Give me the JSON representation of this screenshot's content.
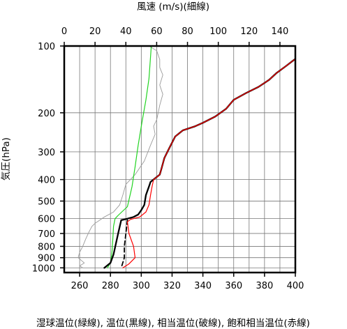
{
  "chart_data": {
    "type": "line",
    "top_axis_label": "風速 (m/s)(細線)",
    "left_axis_label": "気圧(hPa)",
    "bottom_axis_label": "湿球温位(緑線), 温位(黒線), 相当温位(破線), 飽和相当温位(赤線)",
    "x_range_temperature_K": [
      250,
      400
    ],
    "x_range_wind_ms": [
      0,
      150
    ],
    "y_range_hPa": [
      100,
      1050
    ],
    "y_scale": "log",
    "y_inverted": true,
    "grid": true,
    "x_ticks_temperature": [
      "260",
      "280",
      "300",
      "320",
      "340",
      "360",
      "380",
      "400"
    ],
    "x_ticks_wind": [
      "0",
      "20",
      "40",
      "60",
      "80",
      "100",
      "120",
      "140"
    ],
    "y_ticks": [
      "100",
      "200",
      "300",
      "400",
      "500",
      "600",
      "700",
      "800",
      "900",
      "1000"
    ],
    "series": [
      {
        "key": "wind",
        "axis": "wind",
        "color": "#9a9a9a",
        "style": "thin",
        "points": [
          [
            55,
            100
          ],
          [
            60,
            105
          ],
          [
            62,
            115
          ],
          [
            62,
            125
          ],
          [
            64,
            135
          ],
          [
            62,
            150
          ],
          [
            64,
            165
          ],
          [
            62,
            185
          ],
          [
            61,
            200
          ],
          [
            60,
            215
          ],
          [
            58,
            230
          ],
          [
            59,
            250
          ],
          [
            56,
            280
          ],
          [
            52,
            330
          ],
          [
            46,
            380
          ],
          [
            40,
            420
          ],
          [
            38,
            470
          ],
          [
            36,
            520
          ],
          [
            32,
            560
          ],
          [
            26,
            590
          ],
          [
            23,
            610
          ],
          [
            20,
            630
          ],
          [
            18,
            650
          ],
          [
            16,
            690
          ],
          [
            14,
            740
          ],
          [
            12,
            800
          ],
          [
            10,
            850
          ],
          [
            9,
            900
          ],
          [
            13,
            950
          ],
          [
            10,
            980
          ],
          [
            12,
            1000
          ]
        ]
      },
      {
        "key": "wet_bulb_potential_temperature",
        "axis": "temperature",
        "color": "#21d421",
        "style": "solid",
        "points": [
          [
            306.5,
            100
          ],
          [
            305,
            140
          ],
          [
            303,
            175
          ],
          [
            300.5,
            220
          ],
          [
            298,
            280
          ],
          [
            296,
            350
          ],
          [
            294,
            430
          ],
          [
            291,
            530
          ],
          [
            285,
            580
          ],
          [
            283,
            600
          ],
          [
            282,
            650
          ],
          [
            281.5,
            750
          ],
          [
            281,
            850
          ],
          [
            280,
            950
          ],
          [
            278,
            1000
          ]
        ]
      },
      {
        "key": "potential_temperature",
        "axis": "temperature",
        "color": "#000000",
        "style": "bold",
        "points": [
          [
            399.5,
            115
          ],
          [
            394,
            123
          ],
          [
            388,
            132
          ],
          [
            383,
            142
          ],
          [
            376,
            153
          ],
          [
            368,
            163
          ],
          [
            360,
            175
          ],
          [
            355,
            192
          ],
          [
            348,
            208
          ],
          [
            340,
            222
          ],
          [
            335,
            230
          ],
          [
            327,
            240
          ],
          [
            322,
            256
          ],
          [
            318,
            290
          ],
          [
            315,
            320
          ],
          [
            313,
            360
          ],
          [
            312,
            380
          ],
          [
            306,
            410
          ],
          [
            305.5,
            420
          ],
          [
            303,
            470
          ],
          [
            302,
            520
          ],
          [
            300,
            550
          ],
          [
            298,
            575
          ],
          [
            295,
            590
          ],
          [
            291,
            600
          ],
          [
            287,
            610
          ],
          [
            285,
            700
          ],
          [
            282,
            870
          ],
          [
            280,
            950
          ],
          [
            276,
            1000
          ]
        ]
      },
      {
        "key": "equivalent_potential_temperature",
        "axis": "temperature",
        "color": "#000000",
        "style": "dashed",
        "points": [
          [
            291,
            610
          ],
          [
            290,
            700
          ],
          [
            289,
            800
          ],
          [
            289,
            900
          ],
          [
            287,
            1000
          ]
        ]
      },
      {
        "key": "saturated_equivalent_potential_temperature",
        "axis": "temperature",
        "color": "#ff0000",
        "style": "solid",
        "points": [
          [
            399.5,
            115
          ],
          [
            394,
            123
          ],
          [
            388,
            132
          ],
          [
            383,
            142
          ],
          [
            376,
            153
          ],
          [
            368,
            163
          ],
          [
            360,
            175
          ],
          [
            355,
            192
          ],
          [
            348,
            208
          ],
          [
            340,
            222
          ],
          [
            335,
            230
          ],
          [
            327,
            240
          ],
          [
            322,
            256
          ],
          [
            318,
            290
          ],
          [
            315,
            320
          ],
          [
            313,
            360
          ],
          [
            312,
            380
          ],
          [
            308,
            400
          ],
          [
            307,
            430
          ],
          [
            306,
            470
          ],
          [
            305,
            520
          ],
          [
            303,
            560
          ],
          [
            299,
            590
          ],
          [
            293,
            605
          ],
          [
            291,
            620
          ],
          [
            292,
            700
          ],
          [
            295,
            800
          ],
          [
            296,
            900
          ],
          [
            292,
            960
          ],
          [
            288,
            1000
          ]
        ]
      }
    ]
  }
}
